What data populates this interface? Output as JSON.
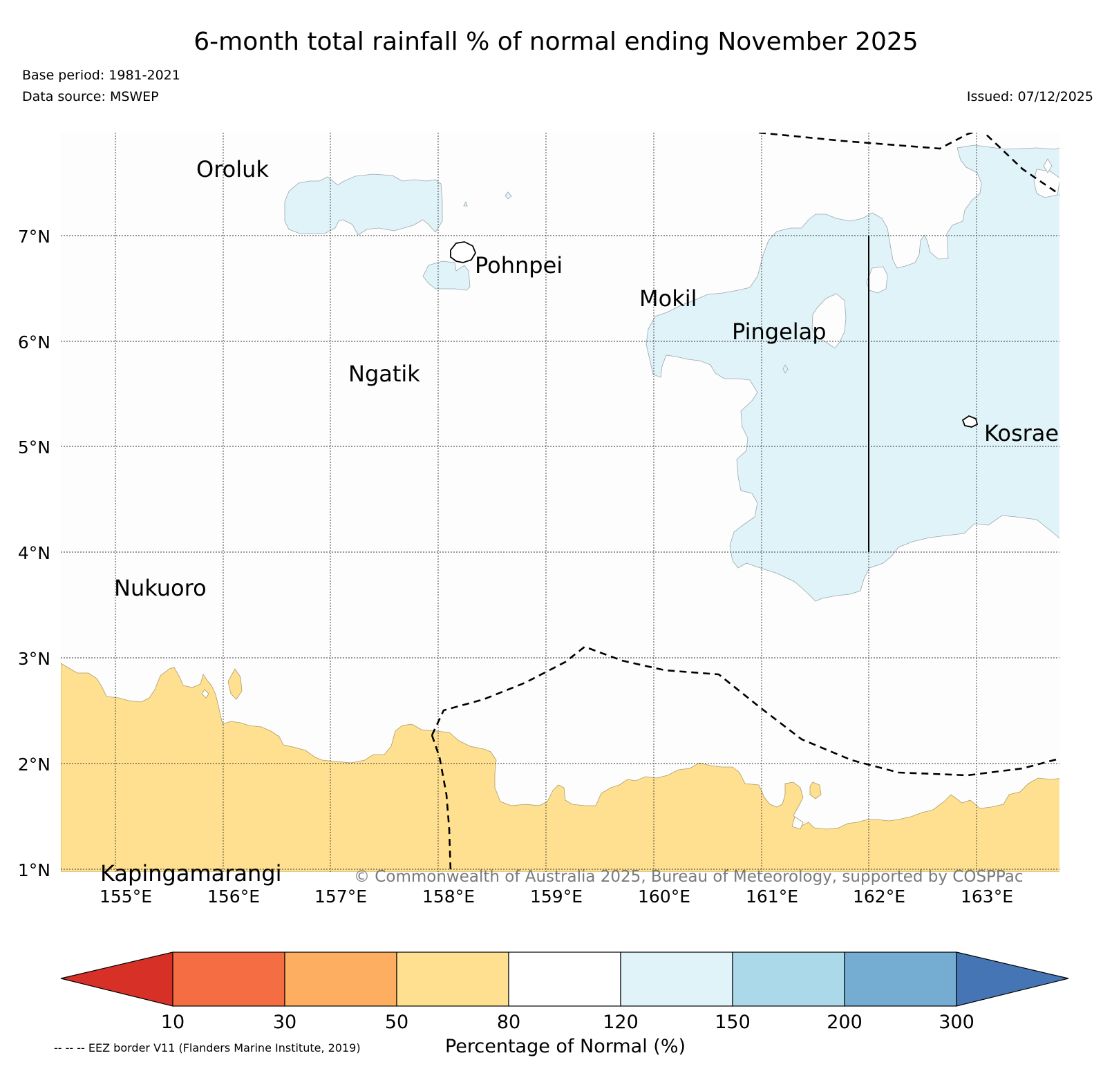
{
  "title": "6-month total rainfall % of normal ending November 2025",
  "base_period": "Base period: 1981-2021",
  "data_source": "Data source: MSWEP",
  "issued": "Issued: 07/12/2025",
  "map": {
    "latitude_labels": [
      "1°N",
      "2°N",
      "3°N",
      "4°N",
      "5°N",
      "6°N",
      "7°N"
    ],
    "longitude_labels": [
      "155°E",
      "156°E",
      "157°E",
      "158°E",
      "159°E",
      "160°E",
      "161°E",
      "162°E",
      "163°E"
    ],
    "extent": {
      "lon_min": 154.5,
      "lon_max": 164.0,
      "lat_min": 1.0,
      "lat_max": 8.0
    },
    "places": [
      {
        "name": "Oroluk",
        "lon": 155.75,
        "lat": 7.6
      },
      {
        "name": "Pohnpei",
        "lon": 158.2,
        "lat": 6.85
      },
      {
        "name": "Mokil",
        "lon": 159.8,
        "lat": 6.55
      },
      {
        "name": "Pingelap",
        "lon": 160.7,
        "lat": 6.2
      },
      {
        "name": "Ngatik",
        "lon": 157.15,
        "lat": 5.78
      },
      {
        "name": "Kosrae",
        "lon": 162.95,
        "lat": 5.3
      },
      {
        "name": "Nukuoro",
        "lon": 154.95,
        "lat": 3.83
      },
      {
        "name": "Kapingamarangi",
        "lon": 154.8,
        "lat": 1.1
      }
    ],
    "copyright": "© Commonwealth of Australia 2025, Bureau of Meteorology, supported by COSPPac",
    "regions": [
      {
        "category": "120-150",
        "area": "north of Pohnpei, north-east quadrant around Pingelap and Kosrae"
      },
      {
        "category": "50-80",
        "area": "southern band south of about 2.5°N"
      }
    ]
  },
  "colorbar": {
    "label": "Percentage of Normal (%)",
    "ticks": [
      "10",
      "30",
      "50",
      "80",
      "120",
      "150",
      "200",
      "300"
    ],
    "colors": {
      "under": "#d73027",
      "c10_30": "#f46d43",
      "c30_50": "#fdae61",
      "c50_80": "#fee090",
      "c80_120": "#ffffff",
      "c120_150": "#e0f3f8",
      "c150_200": "#abd9e9",
      "c200_300": "#74add1",
      "over": "#4575b4"
    }
  },
  "eez_note": "-- -- -- EEZ border V11 (Flanders Marine Institute, 2019)"
}
